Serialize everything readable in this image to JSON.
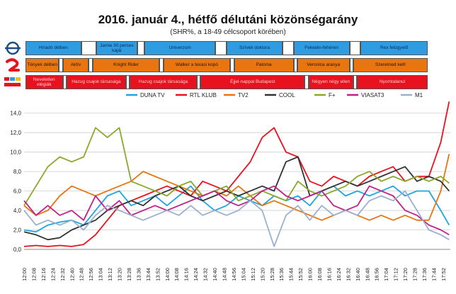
{
  "title": "2016. január 4., hétfő délutáni közönségarány",
  "subtitle": "(SHR%, a 18-49 célcsoport körében)",
  "channel_logos": {
    "row1": "m1-logo-icon",
    "row2": "tv2-logo-icon",
    "row3": "rtl-klub-logo-icon"
  },
  "schedule": {
    "row1_color": "#2f9be0",
    "row2_color": "#e87510",
    "row3_color": "#e8121e",
    "row1": [
      {
        "label": "Híradó délben",
        "start": 0,
        "end": 15
      },
      {
        "label": "",
        "start": 15,
        "end": 19
      },
      {
        "label": "Jamie 30 perces kajái",
        "start": 19,
        "end": 30
      },
      {
        "label": "",
        "start": 30,
        "end": 32
      },
      {
        "label": "Univerzum",
        "start": 32,
        "end": 51
      },
      {
        "label": "",
        "start": 51,
        "end": 54
      },
      {
        "label": "Szívek doktora",
        "start": 54,
        "end": 69
      },
      {
        "label": "",
        "start": 69,
        "end": 72
      },
      {
        "label": "Feketén-fehéren",
        "start": 72,
        "end": 87
      },
      {
        "label": "",
        "start": 87,
        "end": 90
      },
      {
        "label": "Rex felügyelő",
        "start": 90,
        "end": 108
      }
    ],
    "row2": [
      {
        "label": "Tények délben",
        "start": 0,
        "end": 9
      },
      {
        "label": "",
        "start": 9,
        "end": 10
      },
      {
        "label": "Aktív",
        "start": 10,
        "end": 17
      },
      {
        "label": "",
        "start": 17,
        "end": 18
      },
      {
        "label": "Knight Rider",
        "start": 18,
        "end": 36
      },
      {
        "label": "",
        "start": 36,
        "end": 37
      },
      {
        "label": "Walker a texasi kopó",
        "start": 37,
        "end": 55
      },
      {
        "label": "",
        "start": 55,
        "end": 56
      },
      {
        "label": "Paloma",
        "start": 56,
        "end": 72
      },
      {
        "label": "",
        "start": 72,
        "end": 73
      },
      {
        "label": "Veronica aranya",
        "start": 73,
        "end": 87
      },
      {
        "label": "",
        "start": 87,
        "end": 88
      },
      {
        "label": "Szeretned kell!",
        "start": 88,
        "end": 108
      }
    ],
    "row3": [
      {
        "label": "Neveletlen elégiák",
        "start": 0,
        "end": 10
      },
      {
        "label": "",
        "start": 10,
        "end": 11
      },
      {
        "label": "Hazug csajok társasága",
        "start": 11,
        "end": 27
      },
      {
        "label": "",
        "start": 27,
        "end": 28
      },
      {
        "label": "Hazug csajok társasága",
        "start": 28,
        "end": 46
      },
      {
        "label": "",
        "start": 46,
        "end": 47
      },
      {
        "label": "Éjjel-nappal Budapest",
        "start": 47,
        "end": 75
      },
      {
        "label": "",
        "start": 75,
        "end": 76
      },
      {
        "label": "Négyen négy ellen",
        "start": 76,
        "end": 88
      },
      {
        "label": "",
        "start": 88,
        "end": 89
      },
      {
        "label": "Nyomtalanul",
        "start": 89,
        "end": 108
      }
    ]
  },
  "chart_data": {
    "type": "line",
    "title": "2016. január 4., hétfő délutáni közönségarány",
    "subtitle": "(SHR%, a 18-49 célcsoport körében)",
    "ylim": [
      0,
      15
    ],
    "yticks": [
      "0,0",
      "2,0",
      "4,0",
      "6,0",
      "8,0",
      "10,0",
      "12,0",
      "14,0"
    ],
    "legend_position": "top",
    "grid": "horizontal",
    "xticks": [
      "12:00",
      "12:08",
      "12:16",
      "12:24",
      "12:32",
      "12:40",
      "12:48",
      "12:56",
      "13:04",
      "13:12",
      "13:20",
      "13:28",
      "13:36",
      "13:44",
      "13:52",
      "14:00",
      "14:08",
      "14:16",
      "14:24",
      "14:32",
      "14:40",
      "14:48",
      "14:56",
      "15:04",
      "15:12",
      "15:20",
      "15:28",
      "15:36",
      "15:44",
      "15:52",
      "16:00",
      "16:08",
      "16:16",
      "16:24",
      "16:32",
      "16:40",
      "16:48",
      "16:56",
      "17:04",
      "17:12",
      "17:20",
      "17:28",
      "17:36",
      "17:44",
      "17:52"
    ],
    "series": [
      {
        "name": "DUNA TV",
        "color": "#1ea6e0",
        "x": [
          "12:00",
          "12:10",
          "12:20",
          "12:30",
          "12:40",
          "12:50",
          "13:00",
          "13:10",
          "13:20",
          "13:30",
          "13:40",
          "13:50",
          "14:00",
          "14:10",
          "14:20",
          "14:30",
          "14:40",
          "14:50",
          "15:00",
          "15:10",
          "15:20",
          "15:30",
          "15:40",
          "15:50",
          "16:00",
          "16:10",
          "16:20",
          "16:30",
          "16:40",
          "16:50",
          "17:00",
          "17:10",
          "17:20",
          "17:30",
          "17:40",
          "17:50",
          "17:57"
        ],
        "values": [
          2.0,
          1.8,
          2.5,
          2.8,
          3.0,
          2.5,
          4.0,
          5.5,
          6.0,
          4.5,
          5.0,
          5.5,
          4.5,
          5.5,
          6.5,
          5.0,
          4.0,
          4.5,
          5.5,
          5.0,
          4.5,
          5.5,
          5.0,
          5.5,
          4.5,
          6.0,
          6.5,
          5.5,
          6.0,
          5.5,
          6.0,
          6.5,
          5.5,
          6.0,
          6.0,
          4.0,
          2.5
        ]
      },
      {
        "name": "RTL KLUB",
        "color": "#e8121e",
        "x": [
          "12:00",
          "12:10",
          "12:20",
          "12:30",
          "12:40",
          "12:50",
          "13:00",
          "13:10",
          "13:20",
          "13:30",
          "13:40",
          "13:50",
          "14:00",
          "14:10",
          "14:20",
          "14:30",
          "14:40",
          "14:50",
          "15:00",
          "15:10",
          "15:20",
          "15:30",
          "15:40",
          "15:50",
          "16:00",
          "16:10",
          "16:20",
          "16:30",
          "16:40",
          "16:50",
          "17:00",
          "17:10",
          "17:20",
          "17:30",
          "17:40",
          "17:50",
          "17:57"
        ],
        "values": [
          0.3,
          0.4,
          0.3,
          0.4,
          0.3,
          0.5,
          1.5,
          3.0,
          4.5,
          5.0,
          5.5,
          6.0,
          6.5,
          6.0,
          5.5,
          7.0,
          6.5,
          6.0,
          7.5,
          9.0,
          11.5,
          12.5,
          10.0,
          9.5,
          7.0,
          6.5,
          7.5,
          7.0,
          6.5,
          7.5,
          8.0,
          8.5,
          7.0,
          7.5,
          7.5,
          11.0,
          15.2
        ]
      },
      {
        "name": "TV2",
        "color": "#e87510",
        "x": [
          "12:00",
          "12:10",
          "12:20",
          "12:30",
          "12:40",
          "12:50",
          "13:00",
          "13:10",
          "13:20",
          "13:30",
          "13:40",
          "13:50",
          "14:00",
          "14:10",
          "14:20",
          "14:30",
          "14:40",
          "14:50",
          "15:00",
          "15:10",
          "15:20",
          "15:30",
          "15:40",
          "15:50",
          "16:00",
          "16:10",
          "16:20",
          "16:30",
          "16:40",
          "16:50",
          "17:00",
          "17:10",
          "17:20",
          "17:30",
          "17:40",
          "17:50",
          "17:57"
        ],
        "values": [
          4.5,
          3.5,
          4.0,
          5.5,
          6.5,
          6.0,
          5.5,
          6.0,
          6.5,
          7.0,
          8.0,
          7.5,
          7.0,
          6.5,
          6.0,
          5.5,
          6.0,
          5.5,
          6.5,
          5.5,
          4.5,
          5.0,
          4.5,
          4.0,
          3.5,
          3.0,
          3.5,
          4.0,
          3.5,
          3.0,
          3.5,
          3.0,
          3.5,
          3.0,
          3.0,
          6.0,
          9.8
        ]
      },
      {
        "name": "COOL",
        "color": "#333333",
        "x": [
          "12:00",
          "12:10",
          "12:20",
          "12:30",
          "12:40",
          "12:50",
          "13:00",
          "13:10",
          "13:20",
          "13:30",
          "13:40",
          "13:50",
          "14:00",
          "14:10",
          "14:20",
          "14:30",
          "14:40",
          "14:50",
          "15:00",
          "15:10",
          "15:20",
          "15:30",
          "15:40",
          "15:50",
          "16:00",
          "16:10",
          "16:20",
          "16:30",
          "16:40",
          "16:50",
          "17:00",
          "17:10",
          "17:20",
          "17:30",
          "17:40",
          "17:50",
          "17:57"
        ],
        "values": [
          1.8,
          1.5,
          1.0,
          1.2,
          2.0,
          2.5,
          3.0,
          4.0,
          4.5,
          5.0,
          4.5,
          5.5,
          6.0,
          6.5,
          5.5,
          5.0,
          5.5,
          6.0,
          5.5,
          6.0,
          6.5,
          6.0,
          9.0,
          9.5,
          5.5,
          6.0,
          6.5,
          7.0,
          6.5,
          7.0,
          7.5,
          8.0,
          8.5,
          7.0,
          7.5,
          7.0,
          6.0
        ]
      },
      {
        "name": "F+",
        "color": "#8aa82a",
        "x": [
          "12:00",
          "12:10",
          "12:20",
          "12:30",
          "12:40",
          "12:50",
          "13:00",
          "13:10",
          "13:20",
          "13:30",
          "13:40",
          "13:50",
          "14:00",
          "14:10",
          "14:20",
          "14:30",
          "14:40",
          "14:50",
          "15:00",
          "15:10",
          "15:20",
          "15:30",
          "15:40",
          "15:50",
          "16:00",
          "16:10",
          "16:20",
          "16:30",
          "16:40",
          "16:50",
          "17:00",
          "17:10",
          "17:20",
          "17:30",
          "17:40",
          "17:50",
          "17:57"
        ],
        "values": [
          4.5,
          6.5,
          8.5,
          9.5,
          9.0,
          9.5,
          12.5,
          11.5,
          12.5,
          7.0,
          6.5,
          6.0,
          5.5,
          6.5,
          7.0,
          5.5,
          6.0,
          6.5,
          5.0,
          5.5,
          6.0,
          5.5,
          5.0,
          7.0,
          6.0,
          5.5,
          6.0,
          6.5,
          7.5,
          8.0,
          7.0,
          7.5,
          7.0,
          7.5,
          7.0,
          7.5,
          6.8
        ]
      },
      {
        "name": "VIASAT3",
        "color": "#c0208a",
        "x": [
          "12:00",
          "12:10",
          "12:20",
          "12:30",
          "12:40",
          "12:50",
          "13:00",
          "13:10",
          "13:20",
          "13:30",
          "13:40",
          "13:50",
          "14:00",
          "14:10",
          "14:20",
          "14:30",
          "14:40",
          "14:50",
          "15:00",
          "15:10",
          "15:20",
          "15:30",
          "15:40",
          "15:50",
          "16:00",
          "16:10",
          "16:20",
          "16:30",
          "16:40",
          "16:50",
          "17:00",
          "17:10",
          "17:20",
          "17:30",
          "17:40",
          "17:50",
          "17:57"
        ],
        "values": [
          5.0,
          3.5,
          4.5,
          3.5,
          4.0,
          3.0,
          5.5,
          4.0,
          5.0,
          3.5,
          4.0,
          4.5,
          4.0,
          4.5,
          5.0,
          5.5,
          6.0,
          5.0,
          4.5,
          5.0,
          6.0,
          6.5,
          5.5,
          5.0,
          5.5,
          6.0,
          4.5,
          4.0,
          4.5,
          6.5,
          6.0,
          5.5,
          4.0,
          3.5,
          2.5,
          2.0,
          1.5
        ]
      },
      {
        "name": "M1",
        "color": "#9ab0d0",
        "x": [
          "12:00",
          "12:10",
          "12:20",
          "12:30",
          "12:40",
          "12:50",
          "13:00",
          "13:10",
          "13:20",
          "13:30",
          "13:40",
          "13:50",
          "14:00",
          "14:10",
          "14:20",
          "14:30",
          "14:40",
          "14:50",
          "15:00",
          "15:10",
          "15:20",
          "15:30",
          "15:40",
          "15:50",
          "16:00",
          "16:10",
          "16:20",
          "16:30",
          "16:40",
          "16:50",
          "17:00",
          "17:10",
          "17:20",
          "17:30",
          "17:40",
          "17:50",
          "17:57"
        ],
        "values": [
          4.0,
          2.5,
          3.0,
          2.5,
          3.0,
          2.0,
          3.5,
          4.5,
          4.0,
          3.5,
          3.0,
          3.5,
          4.0,
          3.5,
          4.5,
          3.5,
          4.0,
          3.5,
          4.0,
          5.0,
          4.0,
          0.3,
          3.5,
          4.5,
          3.0,
          4.5,
          3.5,
          4.0,
          3.5,
          5.0,
          5.5,
          5.0,
          6.0,
          4.0,
          2.0,
          1.5,
          1.0
        ]
      }
    ]
  }
}
